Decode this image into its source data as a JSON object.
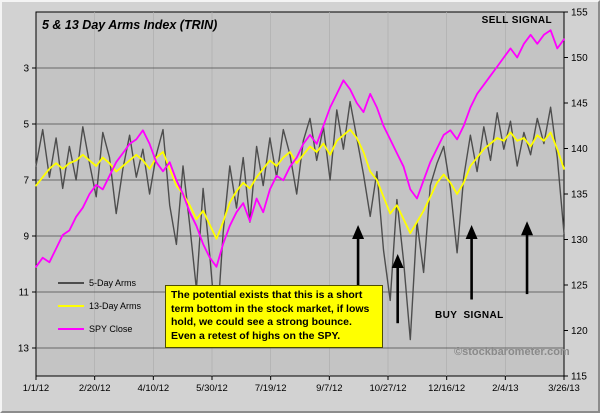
{
  "chart": {
    "title": "5 & 13 Day Arms Index (TRIN)",
    "sell_signal": "SELL SIGNAL",
    "buy_signal": "BUY  SIGNAL",
    "watermark_symbol": "©",
    "watermark_text": "stockbarometer.com",
    "annotation": "The potential exists that this is a short term bottom in the stock market, if lows hold, we could see a strong bounce.  Even a retest of highs on the SPY.",
    "colors": {
      "background": "#d2d2d2",
      "plot_background": "#c4c4c4",
      "annotation_background": "#ffff00",
      "gridline": "#4a4a4a",
      "vertical_gridline": "#aeaeae",
      "arrow": "#000000",
      "watermark": "#8a8a8a"
    }
  },
  "chart_data": {
    "type": "line",
    "title": "5 & 13 Day Arms Index (TRIN)",
    "grid": true,
    "legend_position": "left-inside",
    "x_tick_labels": [
      "1/1/12",
      "2/20/12",
      "4/10/12",
      "5/30/12",
      "7/19/12",
      "9/7/12",
      "10/27/12",
      "12/16/12",
      "2/4/13",
      "3/26/13"
    ],
    "left_axis": {
      "ticks": [
        3,
        5,
        7,
        9,
        11,
        13
      ],
      "tick_labels": [
        "3",
        "5",
        "7",
        "9",
        "11",
        "13"
      ],
      "range": [
        1,
        14
      ],
      "note": "Arms Index (TRIN) scale, low values at top"
    },
    "right_axis": {
      "ticks": [
        155,
        150,
        145,
        140,
        135,
        130,
        125,
        120,
        115
      ],
      "tick_labels": [
        "155",
        "150",
        "145",
        "140",
        "135",
        "130",
        "125",
        "120",
        "115"
      ],
      "range": [
        115,
        155
      ],
      "note": "SPY price scale"
    },
    "series": [
      {
        "name": "5-Day Arms",
        "axis": "left",
        "color": "#4d4d4d",
        "stroke_width": 1.4,
        "values": [
          6.5,
          5.2,
          6.9,
          5.5,
          7.3,
          5.8,
          7.0,
          5.1,
          6.4,
          7.6,
          5.3,
          6.2,
          8.2,
          6.6,
          5.4,
          6.9,
          5.9,
          7.5,
          6.1,
          5.2,
          7.9,
          9.3,
          6.5,
          8.6,
          10.9,
          7.3,
          9.7,
          12.5,
          8.9,
          6.5,
          8.0,
          6.2,
          8.5,
          5.8,
          7.2,
          5.5,
          6.9,
          5.2,
          6.1,
          7.5,
          5.6,
          4.8,
          6.3,
          5.1,
          7.0,
          4.5,
          5.9,
          4.2,
          5.5,
          6.8,
          8.3,
          6.7,
          9.5,
          11.3,
          7.7,
          9.9,
          12.7,
          8.5,
          10.3,
          7.2,
          6.4,
          5.8,
          7.3,
          9.6,
          6.9,
          5.4,
          6.7,
          5.1,
          6.3,
          4.6,
          5.9,
          4.9,
          6.5,
          5.3,
          6.1,
          4.8,
          5.7,
          4.4,
          6.2,
          8.9
        ]
      },
      {
        "name": "13-Day Arms",
        "axis": "left",
        "color": "#ffff00",
        "stroke_width": 1.8,
        "values": [
          7.2,
          6.9,
          6.6,
          6.4,
          6.6,
          6.4,
          6.3,
          6.1,
          6.3,
          6.5,
          6.2,
          6.4,
          6.7,
          6.5,
          6.3,
          6.1,
          6.3,
          6.6,
          6.2,
          6.0,
          6.6,
          7.2,
          7.5,
          7.9,
          8.4,
          8.1,
          8.6,
          9.1,
          8.5,
          7.8,
          7.4,
          7.1,
          7.3,
          6.9,
          6.6,
          6.3,
          6.5,
          6.2,
          6.0,
          6.4,
          6.1,
          5.8,
          6.0,
          5.7,
          6.1,
          5.6,
          5.4,
          5.2,
          5.5,
          6.0,
          6.7,
          7.0,
          7.6,
          8.2,
          7.9,
          8.4,
          8.9,
          8.5,
          8.1,
          7.6,
          7.1,
          6.8,
          7.1,
          7.5,
          7.1,
          6.5,
          6.2,
          5.9,
          5.7,
          5.5,
          5.6,
          5.3,
          5.6,
          5.5,
          5.8,
          5.4,
          5.6,
          5.3,
          5.9,
          6.6
        ]
      },
      {
        "name": "SPY Close",
        "axis": "right",
        "color": "#ff00ff",
        "stroke_width": 1.8,
        "values": [
          127,
          128,
          127.5,
          129,
          130.5,
          131,
          132.5,
          133.5,
          135,
          136,
          135.5,
          137,
          138.5,
          139.5,
          140.5,
          141,
          142,
          140.5,
          138.5,
          137.5,
          138.5,
          136.5,
          135,
          133,
          131.5,
          129.5,
          128,
          127,
          129.5,
          131.5,
          133,
          134,
          132,
          134.5,
          133,
          135.5,
          137,
          136.5,
          138,
          139,
          140.5,
          141.5,
          140.5,
          142.5,
          144.5,
          146,
          147.5,
          146.5,
          145,
          144,
          146,
          144.5,
          142.5,
          141,
          139.5,
          138,
          135.5,
          134.5,
          136.5,
          138.5,
          140,
          141.5,
          142,
          141,
          142.5,
          144.5,
          146,
          147,
          148,
          149,
          150,
          151,
          150,
          151.5,
          152.5,
          151.5,
          152.5,
          153,
          151,
          152
        ]
      }
    ],
    "buy_signal_arrows": [
      {
        "x_frac": 0.61,
        "tip_frac": 0.585,
        "base_frac": 0.79
      },
      {
        "x_frac": 0.685,
        "tip_frac": 0.665,
        "base_frac": 0.855
      },
      {
        "x_frac": 0.825,
        "tip_frac": 0.585,
        "base_frac": 0.79
      },
      {
        "x_frac": 0.93,
        "tip_frac": 0.575,
        "base_frac": 0.775
      }
    ]
  }
}
